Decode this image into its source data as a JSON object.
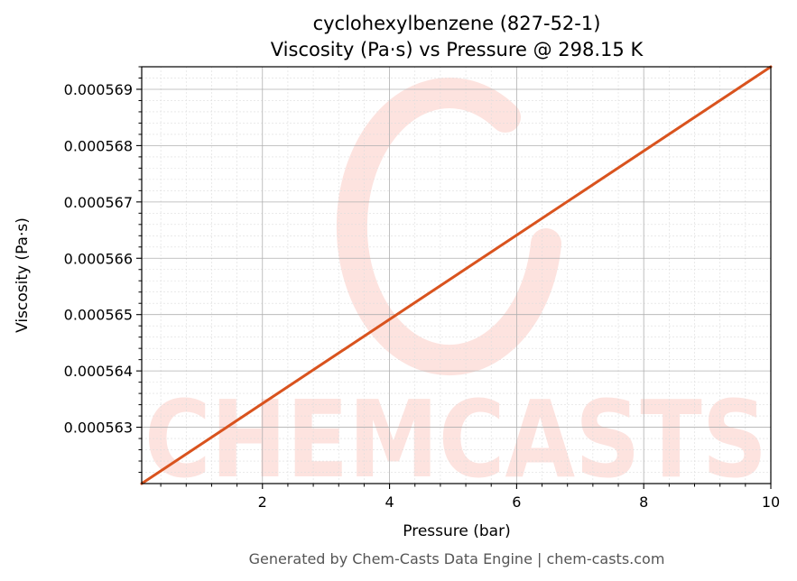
{
  "chart_data": {
    "type": "line",
    "title": "cyclohexylbenzene (827-52-1)",
    "subtitle": "Viscosity (Pa·s) vs Pressure @ 298.15 K",
    "xlabel": "Pressure (bar)",
    "ylabel": "Viscosity (Pa·s)",
    "xlim": [
      0.1,
      10
    ],
    "ylim": [
      0.000562,
      0.0005694
    ],
    "x_ticks": [
      2,
      4,
      6,
      8,
      10
    ],
    "x_tick_labels": [
      "2",
      "4",
      "6",
      "8",
      "10"
    ],
    "y_ticks": [
      0.000563,
      0.000564,
      0.000565,
      0.000566,
      0.000567,
      0.000568,
      0.000569
    ],
    "y_tick_labels": [
      "0.000563",
      "0.000564",
      "0.000565",
      "0.000566",
      "0.000567",
      "0.000568",
      "0.000569"
    ],
    "grid": true,
    "series": [
      {
        "color": "#d9531e",
        "x": [
          0.1,
          10
        ],
        "y": [
          0.000562,
          0.0005694
        ]
      }
    ]
  },
  "watermark": {
    "text": "CHEMCASTS",
    "color": "#fde3df"
  },
  "footer": "Generated by Chem-Casts Data Engine | chem-casts.com"
}
